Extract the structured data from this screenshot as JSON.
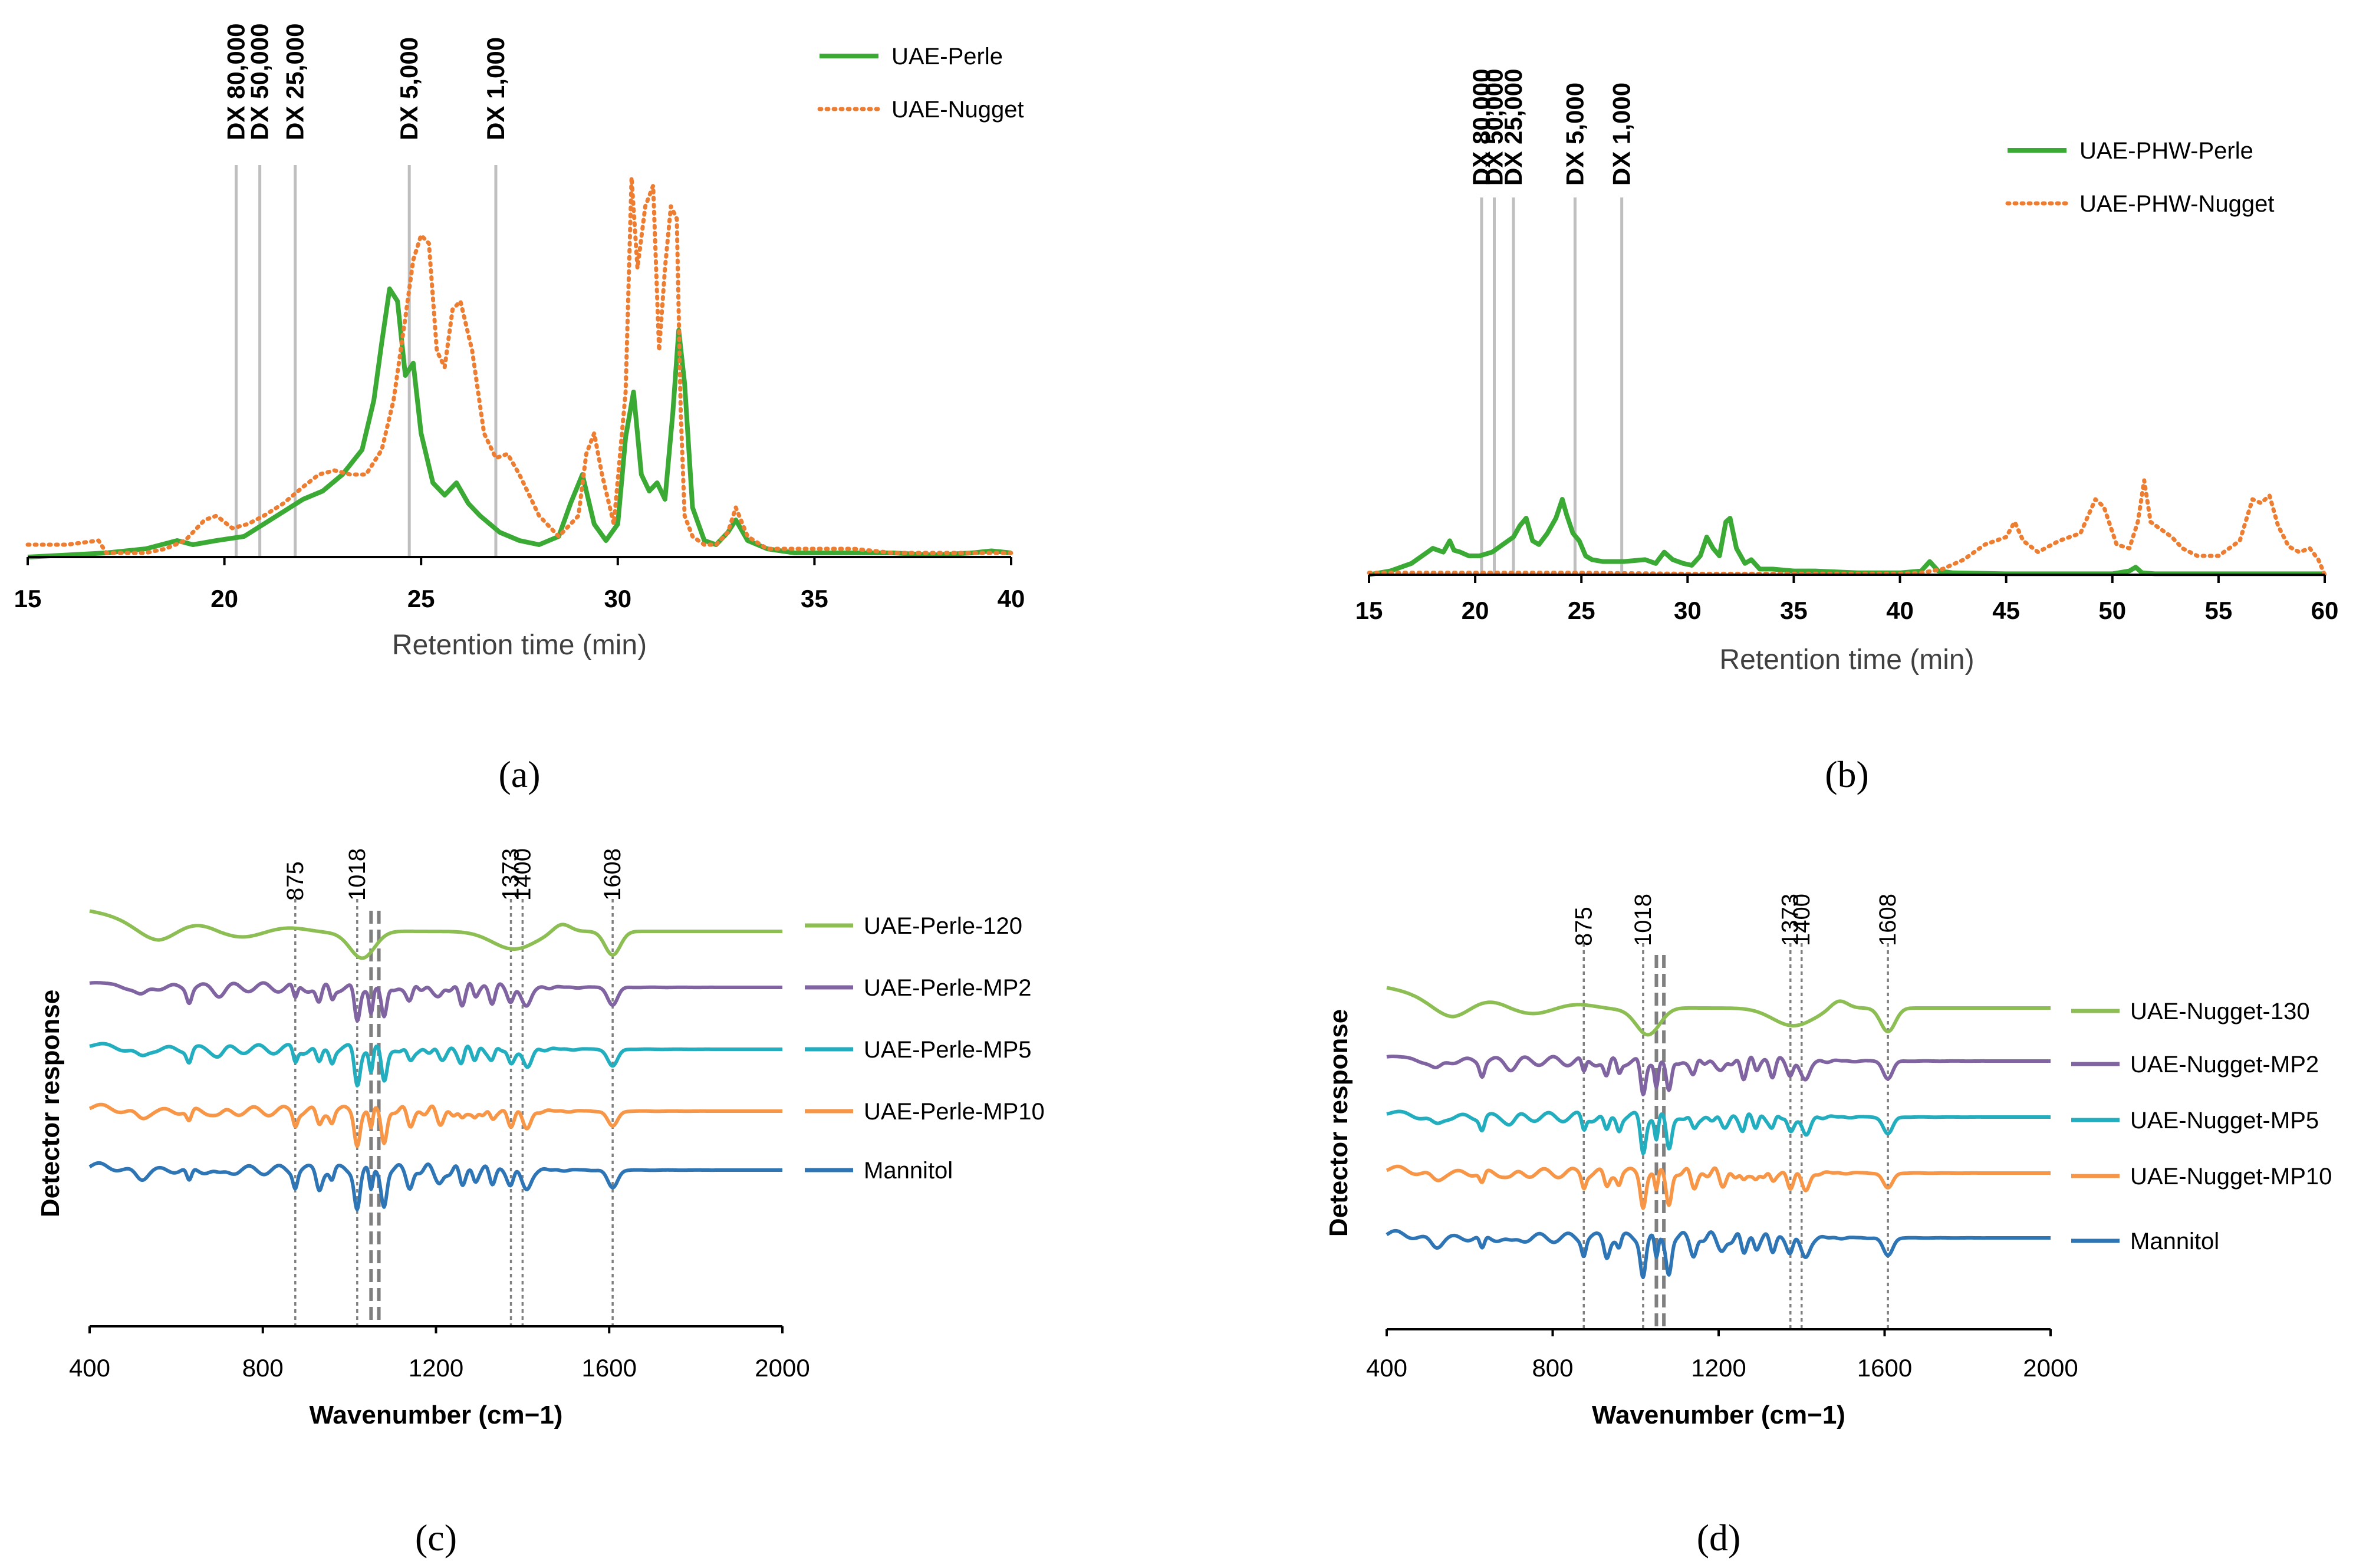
{
  "chart_data": [
    {
      "id": "a",
      "type": "line",
      "panel_label": "(a)",
      "xlabel": "Retention time (min)",
      "xlim": [
        15,
        40
      ],
      "xticks": [
        15,
        20,
        25,
        30,
        35,
        40
      ],
      "reference_lines": [
        {
          "label": "DX 80,000",
          "x": 20.3
        },
        {
          "label": "DX 50,000",
          "x": 20.9
        },
        {
          "label": "DX 25,000",
          "x": 21.8
        },
        {
          "label": "DX 5,000",
          "x": 24.7
        },
        {
          "label": "DX 1,000",
          "x": 26.9
        }
      ],
      "series": [
        {
          "name": "UAE-Perle",
          "color": "#3aaa35",
          "style": "solid",
          "x": [
            15,
            17,
            18,
            18.8,
            19.2,
            19.8,
            20.5,
            21,
            21.5,
            22,
            22.5,
            23,
            23.5,
            23.8,
            24,
            24.2,
            24.4,
            24.6,
            24.8,
            25,
            25.3,
            25.6,
            25.9,
            26.2,
            26.5,
            27,
            27.5,
            28,
            28.5,
            28.8,
            29.1,
            29.4,
            29.7,
            30,
            30.2,
            30.4,
            30.6,
            30.8,
            31,
            31.2,
            31.4,
            31.55,
            31.7,
            31.9,
            32.2,
            32.5,
            32.8,
            33,
            33.3,
            33.8,
            34.5,
            35,
            35.5,
            36,
            37,
            38,
            39,
            39.5,
            40
          ],
          "y": [
            0.0,
            0.01,
            0.02,
            0.04,
            0.03,
            0.04,
            0.05,
            0.08,
            0.11,
            0.14,
            0.16,
            0.2,
            0.26,
            0.38,
            0.52,
            0.65,
            0.62,
            0.44,
            0.47,
            0.3,
            0.18,
            0.15,
            0.18,
            0.13,
            0.1,
            0.06,
            0.04,
            0.03,
            0.05,
            0.13,
            0.2,
            0.08,
            0.04,
            0.08,
            0.29,
            0.4,
            0.2,
            0.16,
            0.18,
            0.14,
            0.35,
            0.55,
            0.42,
            0.12,
            0.04,
            0.03,
            0.06,
            0.09,
            0.04,
            0.02,
            0.01,
            0.01,
            0.01,
            0.01,
            0.01,
            0.005,
            0.01,
            0.015,
            0.01
          ]
        },
        {
          "name": "UAE-Nugget",
          "color": "#ed7d31",
          "style": "dotted",
          "x": [
            15,
            16,
            16.8,
            17,
            17.5,
            18,
            18.5,
            19,
            19.5,
            19.8,
            20.2,
            20.6,
            21,
            21.5,
            22,
            22.4,
            22.8,
            23.2,
            23.6,
            24,
            24.3,
            24.6,
            24.8,
            25,
            25.2,
            25.4,
            25.6,
            25.8,
            26,
            26.3,
            26.6,
            26.9,
            27.2,
            27.5,
            28,
            28.5,
            29,
            29.2,
            29.4,
            29.6,
            29.9,
            30.2,
            30.35,
            30.5,
            30.7,
            30.9,
            31.05,
            31.2,
            31.35,
            31.5,
            31.6,
            31.7,
            31.9,
            32.2,
            32.5,
            32.8,
            33,
            33.3,
            33.8,
            34.5,
            35,
            35.5,
            36,
            37,
            38,
            39,
            40
          ],
          "y": [
            0.03,
            0.03,
            0.04,
            0.01,
            0.01,
            0.01,
            0.02,
            0.04,
            0.09,
            0.1,
            0.07,
            0.08,
            0.1,
            0.13,
            0.17,
            0.2,
            0.21,
            0.2,
            0.2,
            0.26,
            0.38,
            0.58,
            0.72,
            0.78,
            0.76,
            0.5,
            0.46,
            0.6,
            0.62,
            0.5,
            0.3,
            0.24,
            0.25,
            0.2,
            0.1,
            0.05,
            0.1,
            0.25,
            0.3,
            0.2,
            0.08,
            0.4,
            0.92,
            0.7,
            0.85,
            0.9,
            0.5,
            0.7,
            0.85,
            0.82,
            0.35,
            0.1,
            0.05,
            0.03,
            0.03,
            0.06,
            0.12,
            0.05,
            0.02,
            0.02,
            0.02,
            0.02,
            0.02,
            0.01,
            0.01,
            0.01,
            0.01
          ]
        }
      ]
    },
    {
      "id": "b",
      "type": "line",
      "panel_label": "(b)",
      "xlabel": "Retention time (min)",
      "xlim": [
        15,
        60
      ],
      "xticks": [
        15,
        20,
        25,
        30,
        35,
        40,
        45,
        50,
        55,
        60
      ],
      "reference_lines": [
        {
          "label": "DX 80,000",
          "x": 20.3
        },
        {
          "label": "DX 50,000",
          "x": 20.9
        },
        {
          "label": "DX 25,000",
          "x": 21.8
        },
        {
          "label": "DX 5,000",
          "x": 24.7
        },
        {
          "label": "DX 1,000",
          "x": 26.9
        }
      ],
      "series": [
        {
          "name": "UAE-PHW-Perle",
          "color": "#3aaa35",
          "style": "solid",
          "x": [
            15,
            16,
            17,
            17.5,
            18,
            18.5,
            18.8,
            19,
            19.3,
            19.7,
            20.2,
            20.8,
            21.3,
            21.8,
            22.1,
            22.4,
            22.7,
            23,
            23.4,
            23.8,
            24.1,
            24.3,
            24.6,
            24.9,
            25.2,
            25.5,
            26,
            27,
            28,
            28.5,
            28.9,
            29.3,
            29.8,
            30.2,
            30.6,
            30.9,
            31.2,
            31.5,
            31.8,
            32,
            32.3,
            32.7,
            33,
            33.4,
            34,
            35,
            36,
            38,
            40,
            41,
            41.4,
            41.8,
            42.5,
            45,
            50,
            50.8,
            51.1,
            51.4,
            52,
            55,
            57,
            60
          ],
          "y": [
            0.0,
            0.02,
            0.06,
            0.1,
            0.14,
            0.12,
            0.18,
            0.13,
            0.12,
            0.1,
            0.1,
            0.12,
            0.16,
            0.2,
            0.26,
            0.3,
            0.18,
            0.16,
            0.22,
            0.3,
            0.4,
            0.32,
            0.22,
            0.18,
            0.1,
            0.08,
            0.07,
            0.07,
            0.08,
            0.06,
            0.12,
            0.08,
            0.06,
            0.05,
            0.1,
            0.2,
            0.14,
            0.1,
            0.28,
            0.3,
            0.14,
            0.06,
            0.08,
            0.03,
            0.03,
            0.02,
            0.02,
            0.01,
            0.01,
            0.02,
            0.07,
            0.02,
            0.01,
            0.005,
            0.005,
            0.02,
            0.04,
            0.01,
            0.005,
            0.005,
            0.005,
            0.005
          ]
        },
        {
          "name": "UAE-PHW-Nugget",
          "color": "#ed7d31",
          "style": "dotted",
          "x": [
            15,
            20,
            25,
            30,
            35,
            38,
            40,
            41,
            42,
            43,
            44,
            45,
            45.4,
            45.8,
            46.5,
            47.5,
            48.5,
            49.2,
            49.6,
            50.2,
            50.8,
            51.2,
            51.5,
            51.8,
            52.3,
            52.8,
            53.3,
            54,
            55,
            56,
            56.6,
            57,
            57.4,
            57.8,
            58.3,
            58.8,
            59.3,
            59.7,
            60
          ],
          "y": [
            0.01,
            0.01,
            0.01,
            0.005,
            0.005,
            0.005,
            0.005,
            0.01,
            0.03,
            0.08,
            0.16,
            0.2,
            0.28,
            0.18,
            0.12,
            0.18,
            0.22,
            0.4,
            0.36,
            0.16,
            0.14,
            0.28,
            0.5,
            0.28,
            0.24,
            0.2,
            0.14,
            0.1,
            0.1,
            0.18,
            0.4,
            0.38,
            0.42,
            0.26,
            0.15,
            0.12,
            0.14,
            0.08,
            0.0
          ]
        }
      ]
    },
    {
      "id": "c",
      "type": "line",
      "panel_label": "(c)",
      "xlabel": "Wavenumber (cm−1)",
      "ylabel": "Detector response",
      "xlim": [
        400,
        2000
      ],
      "xticks": [
        400,
        800,
        1200,
        1600,
        2000
      ],
      "marker_lines": [
        {
          "label": "875",
          "x": 875,
          "style": "dotted"
        },
        {
          "label": "1018",
          "x": 1018,
          "style": "dotted"
        },
        {
          "label": "",
          "x": 1050,
          "style": "dashed"
        },
        {
          "label": "",
          "x": 1068,
          "style": "dashed"
        },
        {
          "label": "1373",
          "x": 1373,
          "style": "dotted"
        },
        {
          "label": "1400",
          "x": 1400,
          "style": "dotted"
        },
        {
          "label": "1608",
          "x": 1608,
          "style": "dotted"
        }
      ],
      "series": [
        {
          "name": "UAE-Perle-120",
          "color": "#8cbe54"
        },
        {
          "name": "UAE-Perle-MP2",
          "color": "#8064a2"
        },
        {
          "name": "UAE-Perle-MP5",
          "color": "#23aebf"
        },
        {
          "name": "UAE-Perle-MP10",
          "color": "#f79646"
        },
        {
          "name": "Mannitol",
          "color": "#2e75b6"
        }
      ]
    },
    {
      "id": "d",
      "type": "line",
      "panel_label": "(d)",
      "xlabel": "Wavenumber (cm−1)",
      "ylabel": "Detector response",
      "xlim": [
        400,
        2000
      ],
      "xticks": [
        400,
        800,
        1200,
        1600,
        2000
      ],
      "marker_lines": [
        {
          "label": "875",
          "x": 875,
          "style": "dotted"
        },
        {
          "label": "1018",
          "x": 1018,
          "style": "dotted"
        },
        {
          "label": "",
          "x": 1050,
          "style": "dashed"
        },
        {
          "label": "",
          "x": 1068,
          "style": "dashed"
        },
        {
          "label": "1373",
          "x": 1373,
          "style": "dotted"
        },
        {
          "label": "1400",
          "x": 1400,
          "style": "dotted"
        },
        {
          "label": "1608",
          "x": 1608,
          "style": "dotted"
        }
      ],
      "series": [
        {
          "name": "UAE-Nugget-130",
          "color": "#8cbe54"
        },
        {
          "name": "UAE-Nugget-MP2",
          "color": "#8064a2"
        },
        {
          "name": "UAE-Nugget-MP5",
          "color": "#23aebf"
        },
        {
          "name": "UAE-Nugget-MP10",
          "color": "#f79646"
        },
        {
          "name": "Mannitol",
          "color": "#2e75b6"
        }
      ]
    }
  ]
}
